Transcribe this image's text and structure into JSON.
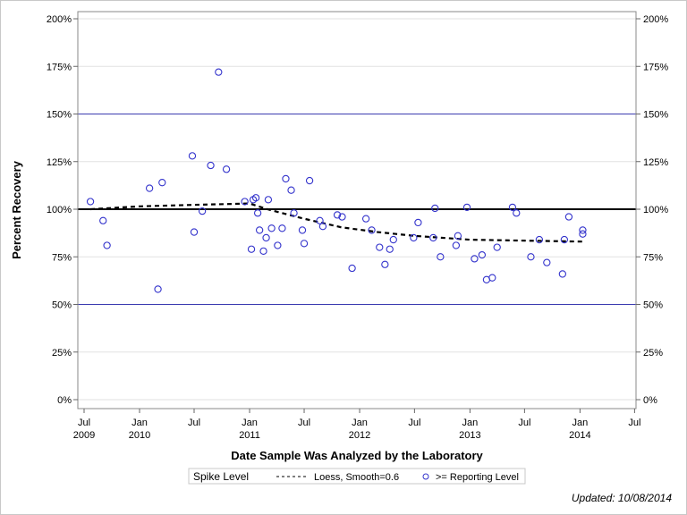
{
  "chart_data": {
    "type": "scatter",
    "xlabel": "Date Sample Was Analyzed by the Laboratory",
    "ylabel": "Percent Recovery",
    "xlim": [
      "2009-06-15",
      "2014-07-25"
    ],
    "ylim": [
      0,
      200
    ],
    "y_ticks": [
      "0%",
      "25%",
      "50%",
      "75%",
      "100%",
      "125%",
      "150%",
      "175%",
      "200%"
    ],
    "y_tick_values": [
      0,
      25,
      50,
      75,
      100,
      125,
      150,
      175,
      200
    ],
    "x_ticks": [
      {
        "date": "2009-07-01",
        "month": "Jul",
        "year": "2009"
      },
      {
        "date": "2010-01-01",
        "month": "Jan",
        "year": "2010"
      },
      {
        "date": "2010-07-01",
        "month": "Jul",
        "year": ""
      },
      {
        "date": "2011-01-01",
        "month": "Jan",
        "year": "2011"
      },
      {
        "date": "2011-07-01",
        "month": "Jul",
        "year": ""
      },
      {
        "date": "2012-01-01",
        "month": "Jan",
        "year": "2012"
      },
      {
        "date": "2012-07-01",
        "month": "Jul",
        "year": ""
      },
      {
        "date": "2013-01-01",
        "month": "Jan",
        "year": "2013"
      },
      {
        "date": "2013-07-01",
        "month": "Jul",
        "year": ""
      },
      {
        "date": "2014-01-01",
        "month": "Jan",
        "year": "2014"
      },
      {
        "date": "2014-07-01",
        "month": "Jul",
        "year": ""
      }
    ],
    "grid": true,
    "reference_lines": [
      {
        "y": 100,
        "color": "#000000",
        "style": "solid-thick"
      },
      {
        "y": 150,
        "color": "#3b3bb0",
        "style": "solid"
      },
      {
        "y": 50,
        "color": "#3b3bb0",
        "style": "solid"
      }
    ],
    "series": [
      {
        "name": ">= Reporting Level",
        "type": "scatter",
        "marker": "open-circle",
        "color": "#3333cc",
        "points": [
          [
            "2009-07-22",
            104
          ],
          [
            "2009-09-02",
            94
          ],
          [
            "2009-09-15",
            81
          ],
          [
            "2010-02-03",
            111
          ],
          [
            "2010-03-03",
            58
          ],
          [
            "2010-03-17",
            114
          ],
          [
            "2010-06-25",
            128
          ],
          [
            "2010-07-01",
            88
          ],
          [
            "2010-07-28",
            99
          ],
          [
            "2010-08-25",
            123
          ],
          [
            "2010-09-20",
            172
          ],
          [
            "2010-10-16",
            121
          ],
          [
            "2010-12-16",
            104
          ],
          [
            "2011-01-07",
            79
          ],
          [
            "2011-01-13",
            105
          ],
          [
            "2011-01-22",
            106
          ],
          [
            "2011-01-28",
            98
          ],
          [
            "2011-02-03",
            89
          ],
          [
            "2011-02-16",
            78
          ],
          [
            "2011-02-25",
            85
          ],
          [
            "2011-03-04",
            105
          ],
          [
            "2011-03-15",
            90
          ],
          [
            "2011-04-04",
            81
          ],
          [
            "2011-04-19",
            90
          ],
          [
            "2011-05-01",
            116
          ],
          [
            "2011-05-19",
            110
          ],
          [
            "2011-05-28",
            98
          ],
          [
            "2011-06-25",
            89
          ],
          [
            "2011-07-01",
            82
          ],
          [
            "2011-07-19",
            115
          ],
          [
            "2011-08-22",
            94
          ],
          [
            "2011-09-01",
            91
          ],
          [
            "2011-10-19",
            97
          ],
          [
            "2011-11-04",
            96
          ],
          [
            "2011-12-07",
            69
          ],
          [
            "2012-01-22",
            95
          ],
          [
            "2012-02-10",
            89
          ],
          [
            "2012-03-07",
            80
          ],
          [
            "2012-03-25",
            71
          ],
          [
            "2012-04-10",
            79
          ],
          [
            "2012-04-22",
            84
          ],
          [
            "2012-06-28",
            85
          ],
          [
            "2012-07-13",
            93
          ],
          [
            "2012-09-01",
            85
          ],
          [
            "2012-09-07",
            100.5
          ],
          [
            "2012-09-25",
            75
          ],
          [
            "2012-11-16",
            81
          ],
          [
            "2012-11-22",
            86
          ],
          [
            "2012-12-22",
            101
          ],
          [
            "2013-01-16",
            74
          ],
          [
            "2013-02-10",
            76
          ],
          [
            "2013-02-25",
            63
          ],
          [
            "2013-03-16",
            64
          ],
          [
            "2013-04-01",
            80
          ],
          [
            "2013-05-22",
            101
          ],
          [
            "2013-06-04",
            98
          ],
          [
            "2013-07-22",
            75
          ],
          [
            "2013-08-19",
            84
          ],
          [
            "2013-09-13",
            72
          ],
          [
            "2013-11-04",
            66
          ],
          [
            "2013-11-10",
            84
          ],
          [
            "2013-11-25",
            96
          ],
          [
            "2014-01-10",
            89
          ],
          [
            "2014-01-10",
            87
          ]
        ]
      },
      {
        "name": "Loess, Smooth=0.6",
        "type": "line",
        "style": "dashed",
        "color": "#000000",
        "points": [
          [
            "2009-07-22",
            100
          ],
          [
            "2010-01-01",
            101.5
          ],
          [
            "2010-07-01",
            102.3
          ],
          [
            "2011-01-01",
            103
          ],
          [
            "2011-03-01",
            100
          ],
          [
            "2011-07-01",
            95
          ],
          [
            "2011-11-01",
            90.5
          ],
          [
            "2012-03-01",
            88
          ],
          [
            "2012-07-01",
            86
          ],
          [
            "2013-01-01",
            84
          ],
          [
            "2013-07-01",
            83.5
          ],
          [
            "2014-01-10",
            83
          ]
        ]
      }
    ],
    "legend": {
      "placement": "bottom",
      "title": "Spike Level",
      "items": [
        "Loess, Smooth=0.6",
        ">= Reporting Level"
      ]
    }
  },
  "footnote": "Updated: 10/08/2014"
}
